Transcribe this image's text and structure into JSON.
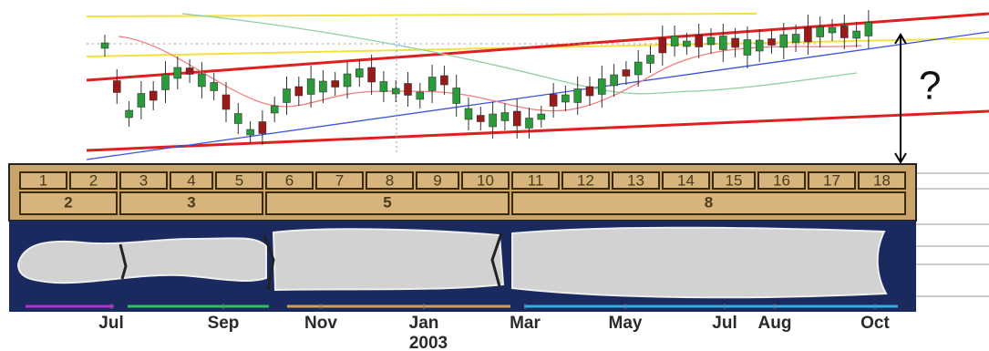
{
  "fib_boxes": {
    "units": [
      1,
      2,
      3,
      4,
      5,
      6,
      7,
      8,
      9,
      10,
      11,
      12,
      13,
      14,
      15,
      16,
      17,
      18
    ],
    "groups": [
      2,
      3,
      5,
      8
    ]
  },
  "question": "?",
  "months": [
    "Jul",
    "Sep",
    "Nov",
    "Jan",
    "Mar",
    "May",
    "Jul",
    "Aug",
    "Oct"
  ],
  "year": "2003"
}
